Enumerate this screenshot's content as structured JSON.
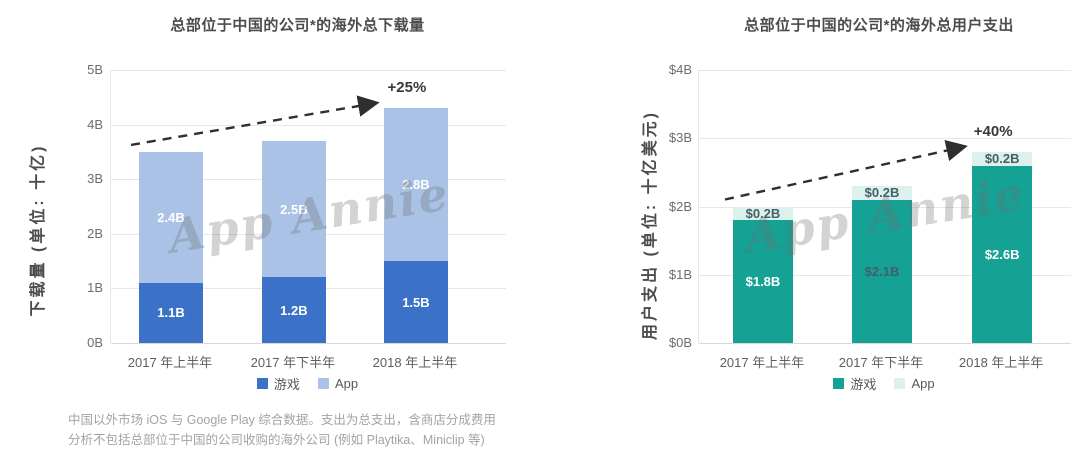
{
  "watermark": "App Annie",
  "chart_data": [
    {
      "type": "bar",
      "stacked": true,
      "title": "总部位于中国的公司*的海外总下载量",
      "ylabel": "下载量 (单位: 十亿)",
      "categories": [
        "2017 年上半年",
        "2017 年下半年",
        "2018 年上半年"
      ],
      "yticks": [
        "0B",
        "1B",
        "2B",
        "3B",
        "4B",
        "5B"
      ],
      "ylim": [
        0,
        5
      ],
      "grid": true,
      "legend_position": "bottom",
      "series": [
        {
          "name": "游戏",
          "color": "#3b72c7",
          "values": [
            1.1,
            1.2,
            1.5
          ],
          "labels": [
            "1.1B",
            "1.2B",
            "1.5B"
          ],
          "label_colors": [
            "#ffffff",
            "#ffffff",
            "#ffffff"
          ]
        },
        {
          "name": "App",
          "color": "#aac2e6",
          "values": [
            2.4,
            2.5,
            2.8
          ],
          "labels": [
            "2.4B",
            "2.5B",
            "2.8B"
          ],
          "label_colors": [
            "#ffffff",
            "#ffffff",
            "#ffffff"
          ]
        }
      ],
      "annotation": {
        "text": "+25%",
        "from_category": 0,
        "to_category": 2
      }
    },
    {
      "type": "bar",
      "stacked": true,
      "title": "总部位于中国的公司*的海外总用户支出",
      "ylabel": "用户支出 (单位: 十亿美元)",
      "categories": [
        "2017 年上半年",
        "2017 年下半年",
        "2018 年上半年"
      ],
      "yticks": [
        "$0B",
        "$1B",
        "$2B",
        "$3B",
        "$4B"
      ],
      "ylim": [
        0,
        4
      ],
      "grid": true,
      "legend_position": "bottom",
      "series": [
        {
          "name": "游戏",
          "color": "#16a195",
          "values": [
            1.8,
            2.1,
            2.6
          ],
          "labels": [
            "$1.8B",
            "$2.1B",
            "$2.6B"
          ],
          "label_colors": [
            "#ffffff",
            "#40606a",
            "#ffffff"
          ]
        },
        {
          "name": "App",
          "color": "#dcf0ec",
          "values": [
            0.2,
            0.2,
            0.2
          ],
          "labels": [
            "$0.2B",
            "$0.2B",
            "$0.2B"
          ],
          "label_colors": [
            "#42616b",
            "#42616b",
            "#42616b"
          ]
        }
      ],
      "annotation": {
        "text": "+40%",
        "from_category": 0,
        "to_category": 2
      }
    }
  ],
  "footnote": {
    "line1": "中国以外市场 iOS 与 Google Play 综合数据。支出为总支出，含商店分成费用",
    "line2": "分析不包括总部位于中国的公司收购的海外公司 (例如 Playtika、Miniclip 等)"
  }
}
